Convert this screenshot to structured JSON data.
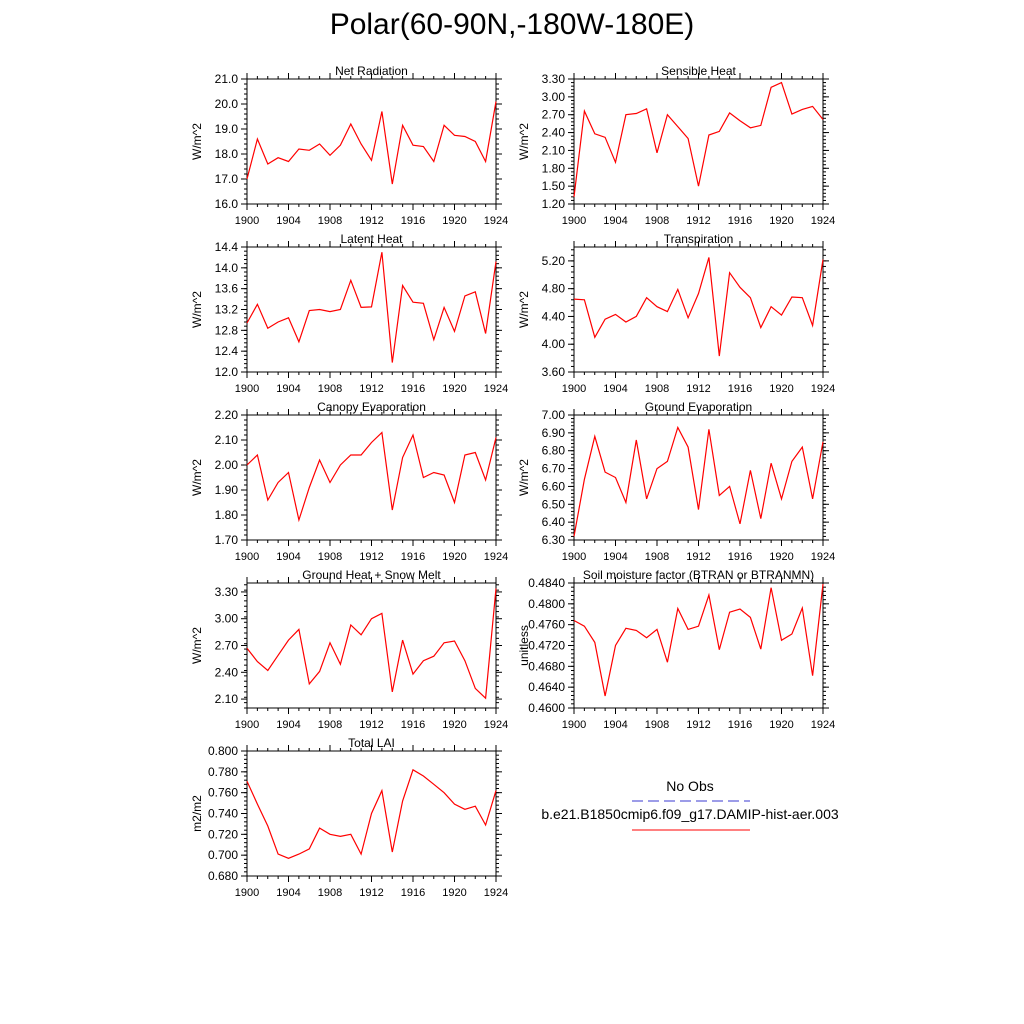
{
  "title": "Polar(60-90N,-180W-180E)",
  "legend": {
    "obs_label": "No Obs",
    "obs_color": "#3a3ad0",
    "model_label": "b.e21.B1850cmip6.f09_g17.DAMIP-hist-aer.003",
    "model_color": "#ff0000"
  },
  "chart_data": [
    {
      "type": "line",
      "title": "Net Radiation",
      "ylabel": "W/m^2",
      "xlim": [
        1900,
        1924
      ],
      "ylim": [
        16.0,
        21.0
      ],
      "xticks": [
        1900,
        1904,
        1908,
        1912,
        1916,
        1920,
        1924
      ],
      "xtick_labels": [
        "1900",
        "1904",
        "1908",
        "1912",
        "1916",
        "1920",
        "1924"
      ],
      "yticks": [
        16.0,
        17.0,
        18.0,
        19.0,
        20.0,
        21.0
      ],
      "ytick_labels": [
        "16.0",
        "17.0",
        "18.0",
        "19.0",
        "20.0",
        "21.0"
      ],
      "x": [
        1900,
        1901,
        1902,
        1903,
        1904,
        1905,
        1906,
        1907,
        1908,
        1909,
        1910,
        1911,
        1912,
        1913,
        1914,
        1915,
        1916,
        1917,
        1918,
        1919,
        1920,
        1921,
        1922,
        1923,
        1924
      ],
      "values": [
        17.0,
        18.6,
        17.6,
        17.85,
        17.7,
        18.2,
        18.15,
        18.4,
        17.95,
        18.35,
        19.2,
        18.4,
        17.75,
        19.7,
        16.8,
        19.15,
        18.35,
        18.3,
        17.7,
        19.15,
        18.75,
        18.7,
        18.5,
        17.7,
        20.1
      ]
    },
    {
      "type": "line",
      "title": "Sensible Heat",
      "ylabel": "W/m^2",
      "xlim": [
        1900,
        1924
      ],
      "ylim": [
        1.2,
        3.3
      ],
      "xticks": [
        1900,
        1904,
        1908,
        1912,
        1916,
        1920,
        1924
      ],
      "xtick_labels": [
        "1900",
        "1904",
        "1908",
        "1912",
        "1916",
        "1920",
        "1924"
      ],
      "yticks": [
        1.2,
        1.5,
        1.8,
        2.1,
        2.4,
        2.7,
        3.0,
        3.3
      ],
      "ytick_labels": [
        "1.20",
        "1.50",
        "1.80",
        "2.10",
        "2.40",
        "2.70",
        "3.00",
        "3.30"
      ],
      "x": [
        1900,
        1901,
        1902,
        1903,
        1904,
        1905,
        1906,
        1907,
        1908,
        1909,
        1910,
        1911,
        1912,
        1913,
        1914,
        1915,
        1916,
        1917,
        1918,
        1919,
        1920,
        1921,
        1922,
        1923,
        1924
      ],
      "values": [
        1.32,
        2.76,
        2.38,
        2.32,
        1.9,
        2.7,
        2.72,
        2.8,
        2.06,
        2.7,
        2.5,
        2.3,
        1.5,
        2.36,
        2.42,
        2.73,
        2.6,
        2.48,
        2.52,
        3.16,
        3.24,
        2.71,
        2.79,
        2.84,
        2.62
      ]
    },
    {
      "type": "line",
      "title": "Latent Heat",
      "ylabel": "W/m^2",
      "xlim": [
        1900,
        1924
      ],
      "ylim": [
        12.0,
        14.4
      ],
      "xticks": [
        1900,
        1904,
        1908,
        1912,
        1916,
        1920,
        1924
      ],
      "xtick_labels": [
        "1900",
        "1904",
        "1908",
        "1912",
        "1916",
        "1920",
        "1924"
      ],
      "yticks": [
        12.0,
        12.4,
        12.8,
        13.2,
        13.6,
        14.0,
        14.4
      ],
      "ytick_labels": [
        "12.0",
        "12.4",
        "12.8",
        "13.2",
        "13.6",
        "14.0",
        "14.4"
      ],
      "x": [
        1900,
        1901,
        1902,
        1903,
        1904,
        1905,
        1906,
        1907,
        1908,
        1909,
        1910,
        1911,
        1912,
        1913,
        1914,
        1915,
        1916,
        1917,
        1918,
        1919,
        1920,
        1921,
        1922,
        1923,
        1924
      ],
      "values": [
        12.94,
        13.3,
        12.84,
        12.96,
        13.04,
        12.58,
        13.18,
        13.2,
        13.16,
        13.2,
        13.76,
        13.24,
        13.25,
        14.3,
        12.18,
        13.66,
        13.34,
        13.32,
        12.62,
        13.24,
        12.78,
        13.46,
        13.54,
        12.74,
        14.12
      ]
    },
    {
      "type": "line",
      "title": "Transpiration",
      "ylabel": "W/m^2",
      "xlim": [
        1900,
        1924
      ],
      "ylim": [
        3.6,
        5.4
      ],
      "xticks": [
        1900,
        1904,
        1908,
        1912,
        1916,
        1920,
        1924
      ],
      "xtick_labels": [
        "1900",
        "1904",
        "1908",
        "1912",
        "1916",
        "1920",
        "1924"
      ],
      "yticks": [
        3.6,
        4.0,
        4.4,
        4.8,
        5.2
      ],
      "ytick_labels": [
        "3.60",
        "4.00",
        "4.40",
        "4.80",
        "5.20"
      ],
      "x": [
        1900,
        1901,
        1902,
        1903,
        1904,
        1905,
        1906,
        1907,
        1908,
        1909,
        1910,
        1911,
        1912,
        1913,
        1914,
        1915,
        1916,
        1917,
        1918,
        1919,
        1920,
        1921,
        1922,
        1923,
        1924
      ],
      "values": [
        4.65,
        4.64,
        4.1,
        4.36,
        4.43,
        4.32,
        4.4,
        4.67,
        4.54,
        4.47,
        4.79,
        4.38,
        4.73,
        5.25,
        3.83,
        5.03,
        4.82,
        4.67,
        4.24,
        4.54,
        4.42,
        4.68,
        4.67,
        4.27,
        5.22
      ]
    },
    {
      "type": "line",
      "title": "Canopy Evaporation",
      "ylabel": "W/m^2",
      "xlim": [
        1900,
        1924
      ],
      "ylim": [
        1.7,
        2.2
      ],
      "xticks": [
        1900,
        1904,
        1908,
        1912,
        1916,
        1920,
        1924
      ],
      "xtick_labels": [
        "1900",
        "1904",
        "1908",
        "1912",
        "1916",
        "1920",
        "1924"
      ],
      "yticks": [
        1.7,
        1.8,
        1.9,
        2.0,
        2.1,
        2.2
      ],
      "ytick_labels": [
        "1.70",
        "1.80",
        "1.90",
        "2.00",
        "2.10",
        "2.20"
      ],
      "x": [
        1900,
        1901,
        1902,
        1903,
        1904,
        1905,
        1906,
        1907,
        1908,
        1909,
        1910,
        1911,
        1912,
        1913,
        1914,
        1915,
        1916,
        1917,
        1918,
        1919,
        1920,
        1921,
        1922,
        1923,
        1924
      ],
      "values": [
        2.0,
        2.04,
        1.86,
        1.93,
        1.97,
        1.78,
        1.91,
        2.02,
        1.93,
        2.0,
        2.04,
        2.04,
        2.09,
        2.13,
        1.82,
        2.03,
        2.12,
        1.95,
        1.97,
        1.96,
        1.85,
        2.04,
        2.05,
        1.94,
        2.11
      ]
    },
    {
      "type": "line",
      "title": "Ground Evaporation",
      "ylabel": "W/m^2",
      "xlim": [
        1900,
        1924
      ],
      "ylim": [
        6.3,
        7.0
      ],
      "xticks": [
        1900,
        1904,
        1908,
        1912,
        1916,
        1920,
        1924
      ],
      "xtick_labels": [
        "1900",
        "1904",
        "1908",
        "1912",
        "1916",
        "1920",
        "1924"
      ],
      "yticks": [
        6.3,
        6.4,
        6.5,
        6.6,
        6.7,
        6.8,
        6.9,
        7.0
      ],
      "ytick_labels": [
        "6.30",
        "6.40",
        "6.50",
        "6.60",
        "6.70",
        "6.80",
        "6.90",
        "7.00"
      ],
      "x": [
        1900,
        1901,
        1902,
        1903,
        1904,
        1905,
        1906,
        1907,
        1908,
        1909,
        1910,
        1911,
        1912,
        1913,
        1914,
        1915,
        1916,
        1917,
        1918,
        1919,
        1920,
        1921,
        1922,
        1923,
        1924
      ],
      "values": [
        6.32,
        6.64,
        6.88,
        6.68,
        6.65,
        6.51,
        6.86,
        6.53,
        6.7,
        6.74,
        6.93,
        6.82,
        6.47,
        6.92,
        6.55,
        6.6,
        6.39,
        6.69,
        6.42,
        6.73,
        6.53,
        6.74,
        6.82,
        6.53,
        6.85
      ]
    },
    {
      "type": "line",
      "title": "Ground Heat + Snow Melt",
      "ylabel": "W/m^2",
      "xlim": [
        1900,
        1924
      ],
      "ylim": [
        2.0,
        3.4
      ],
      "xticks": [
        1900,
        1904,
        1908,
        1912,
        1916,
        1920,
        1924
      ],
      "xtick_labels": [
        "1900",
        "1904",
        "1908",
        "1912",
        "1916",
        "1920",
        "1924"
      ],
      "yticks": [
        2.1,
        2.4,
        2.7,
        3.0,
        3.3
      ],
      "ytick_labels": [
        "2.10",
        "2.40",
        "2.70",
        "3.00",
        "3.30"
      ],
      "x": [
        1900,
        1901,
        1902,
        1903,
        1904,
        1905,
        1906,
        1907,
        1908,
        1909,
        1910,
        1911,
        1912,
        1913,
        1914,
        1915,
        1916,
        1917,
        1918,
        1919,
        1920,
        1921,
        1922,
        1923,
        1924
      ],
      "values": [
        2.67,
        2.52,
        2.42,
        2.59,
        2.76,
        2.88,
        2.27,
        2.41,
        2.73,
        2.49,
        2.93,
        2.82,
        3.0,
        3.06,
        2.18,
        2.76,
        2.38,
        2.53,
        2.58,
        2.73,
        2.75,
        2.53,
        2.22,
        2.11,
        3.34
      ]
    },
    {
      "type": "line",
      "title": "Soil moisture factor (BTRAN or BTRANMN)",
      "ylabel": "unitless",
      "xlim": [
        1900,
        1924
      ],
      "ylim": [
        0.46,
        0.484
      ],
      "xticks": [
        1900,
        1904,
        1908,
        1912,
        1916,
        1920,
        1924
      ],
      "xtick_labels": [
        "1900",
        "1904",
        "1908",
        "1912",
        "1916",
        "1920",
        "1924"
      ],
      "yticks": [
        0.46,
        0.464,
        0.468,
        0.472,
        0.476,
        0.48,
        0.484
      ],
      "ytick_labels": [
        "0.4600",
        "0.4640",
        "0.4680",
        "0.4720",
        "0.4760",
        "0.4800",
        "0.4840"
      ],
      "x": [
        1900,
        1901,
        1902,
        1903,
        1904,
        1905,
        1906,
        1907,
        1908,
        1909,
        1910,
        1911,
        1912,
        1913,
        1914,
        1915,
        1916,
        1917,
        1918,
        1919,
        1920,
        1921,
        1922,
        1923,
        1924
      ],
      "values": [
        0.4768,
        0.4757,
        0.4726,
        0.4623,
        0.472,
        0.4753,
        0.4749,
        0.4735,
        0.4751,
        0.4688,
        0.4791,
        0.4751,
        0.4757,
        0.4817,
        0.4712,
        0.4784,
        0.479,
        0.4774,
        0.4713,
        0.4831,
        0.473,
        0.4742,
        0.4792,
        0.4662,
        0.4838
      ]
    },
    {
      "type": "line",
      "title": "Total LAI",
      "ylabel": "m2/m2",
      "xlim": [
        1900,
        1924
      ],
      "ylim": [
        0.68,
        0.8
      ],
      "xticks": [
        1900,
        1904,
        1908,
        1912,
        1916,
        1920,
        1924
      ],
      "xtick_labels": [
        "1900",
        "1904",
        "1908",
        "1912",
        "1916",
        "1920",
        "1924"
      ],
      "yticks": [
        0.68,
        0.7,
        0.72,
        0.74,
        0.76,
        0.78,
        0.8
      ],
      "ytick_labels": [
        "0.680",
        "0.700",
        "0.720",
        "0.740",
        "0.760",
        "0.780",
        "0.800"
      ],
      "x": [
        1900,
        1901,
        1902,
        1903,
        1904,
        1905,
        1906,
        1907,
        1908,
        1909,
        1910,
        1911,
        1912,
        1913,
        1914,
        1915,
        1916,
        1917,
        1918,
        1919,
        1920,
        1921,
        1922,
        1923,
        1924
      ],
      "values": [
        0.771,
        0.749,
        0.728,
        0.701,
        0.697,
        0.701,
        0.706,
        0.726,
        0.72,
        0.718,
        0.72,
        0.701,
        0.74,
        0.762,
        0.703,
        0.752,
        0.782,
        0.776,
        0.768,
        0.76,
        0.749,
        0.744,
        0.747,
        0.729,
        0.762
      ]
    }
  ]
}
